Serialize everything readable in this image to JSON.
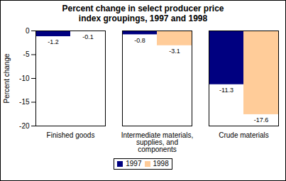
{
  "chart_data": {
    "type": "bar",
    "title": "Percent change in select producer price index groupings, 1997 and 1998",
    "y_label": "Percent change",
    "categories": [
      "Finished goods",
      "Intermediate materials, supplies, and components",
      "Crude materials"
    ],
    "series": [
      {
        "name": "1997",
        "color": "#000080",
        "values": [
          -1.2,
          -0.8,
          -11.3
        ]
      },
      {
        "name": "1998",
        "color": "#FFCC99",
        "values": [
          -0.1,
          -3.1,
          -17.6
        ]
      }
    ],
    "ylim": [
      -20,
      0
    ],
    "yticks": [
      -20,
      -15,
      -10,
      -5,
      0
    ],
    "grid": false,
    "data_labels": true,
    "legend": "bottom"
  }
}
